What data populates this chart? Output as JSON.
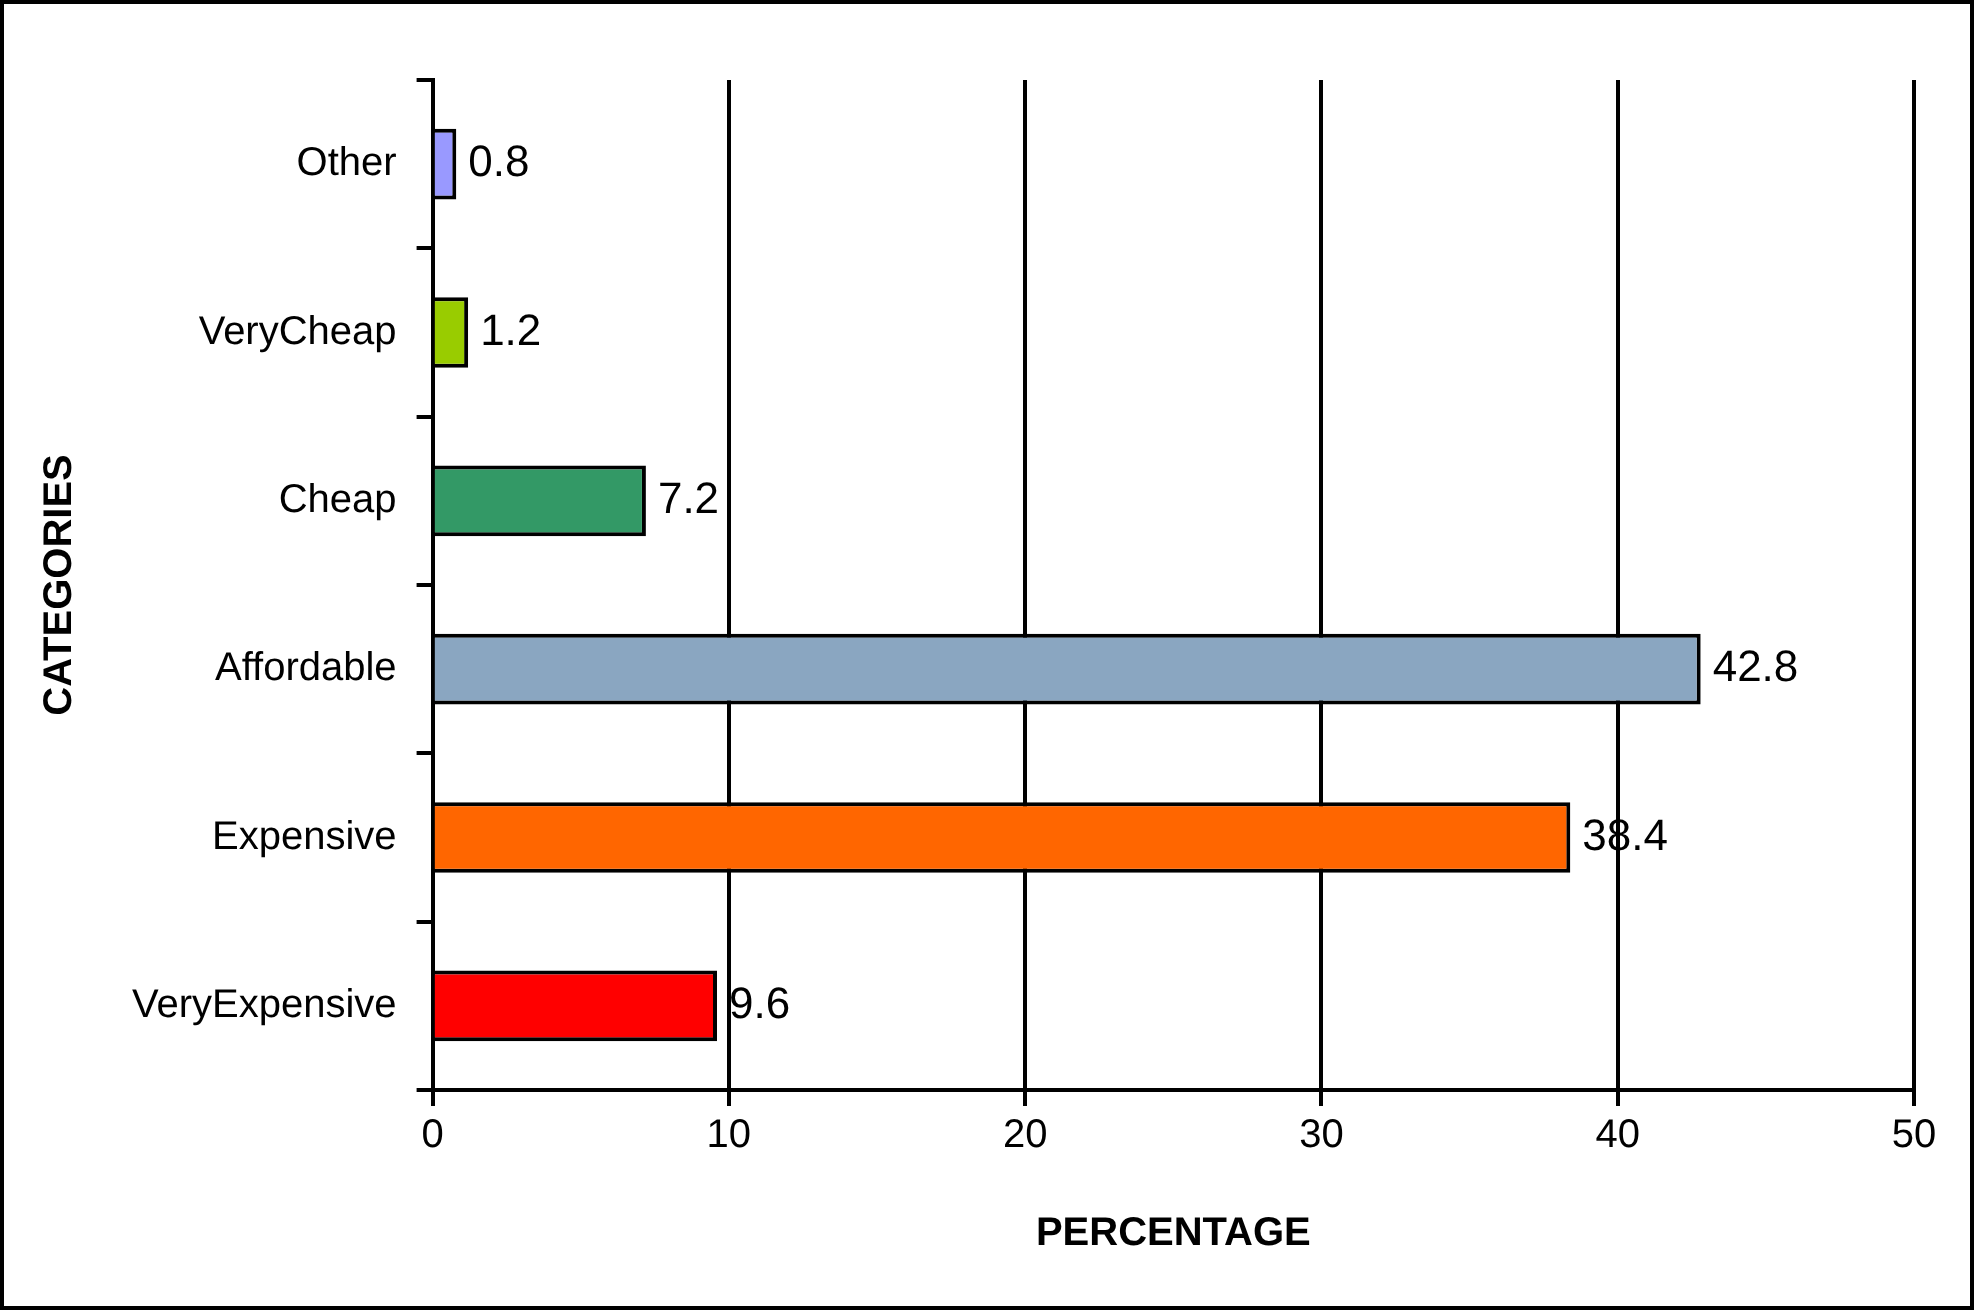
{
  "chart_data": {
    "type": "bar",
    "orientation": "horizontal",
    "xlabel": "PERCENTAGE",
    "ylabel": "CATEGORIES",
    "categories": [
      "Other",
      "VeryCheap",
      "Cheap",
      "Affordable",
      "Expensive",
      "VeryExpensive"
    ],
    "values": [
      0.8,
      1.2,
      7.2,
      42.8,
      38.4,
      9.6
    ],
    "colors": [
      "#9999ff",
      "#99cc00",
      "#339966",
      "#8aa6c1",
      "#ff6600",
      "#ff0000"
    ],
    "xlim": [
      0,
      50
    ],
    "xticks": [
      0,
      10,
      20,
      30,
      40,
      50
    ],
    "grid": "x",
    "data_labels": true,
    "legend": false
  }
}
